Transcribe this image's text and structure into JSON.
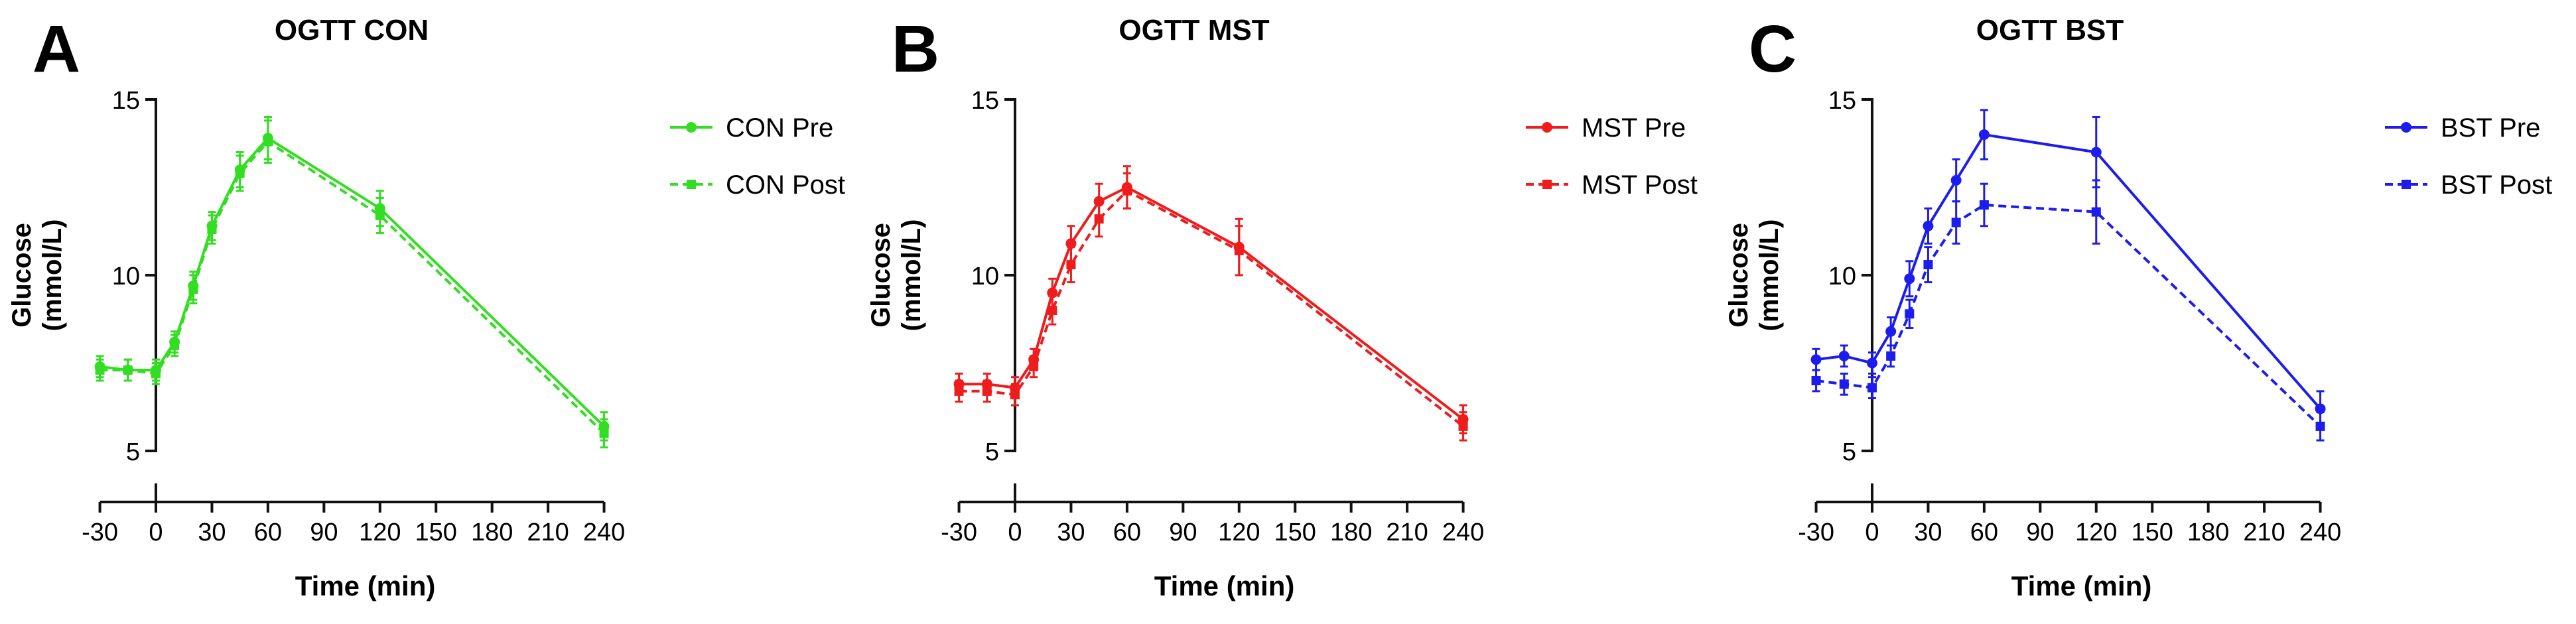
{
  "chart_data": [
    {
      "panel_label": "A",
      "type": "line",
      "title": "OGTT CON",
      "xlabel": "Time (min)",
      "ylabel_line1": "Glucose",
      "ylabel_line2": "(mmol/L)",
      "xlim": [
        -30,
        240
      ],
      "ylim": [
        5,
        15
      ],
      "xticks": [
        -30,
        0,
        30,
        60,
        90,
        120,
        150,
        180,
        210,
        240
      ],
      "xtick_labels": [
        "-30",
        "0",
        "30",
        "60",
        "90",
        "120",
        "150",
        "180",
        "210",
        "240"
      ],
      "yticks": [
        5,
        10,
        15
      ],
      "ytick_labels": [
        "5",
        "10",
        "15"
      ],
      "color": "#33dd22",
      "legend_position": "right",
      "series": [
        {
          "name": "CON Pre",
          "style": "solid",
          "marker": "circle",
          "x": [
            -30,
            -15,
            0,
            10,
            20,
            30,
            45,
            60,
            120,
            240
          ],
          "y": [
            7.4,
            7.3,
            7.3,
            8.1,
            9.7,
            11.4,
            13.0,
            13.9,
            11.9,
            5.7
          ],
          "err": [
            0.3,
            0.3,
            0.3,
            0.3,
            0.4,
            0.4,
            0.5,
            0.6,
            0.5,
            0.4
          ]
        },
        {
          "name": "CON Post",
          "style": "dashed",
          "marker": "square",
          "x": [
            -30,
            -15,
            0,
            10,
            20,
            30,
            45,
            60,
            120,
            240
          ],
          "y": [
            7.3,
            7.3,
            7.2,
            8.0,
            9.6,
            11.3,
            12.9,
            13.8,
            11.7,
            5.5
          ],
          "err": [
            0.3,
            0.3,
            0.3,
            0.3,
            0.4,
            0.4,
            0.5,
            0.6,
            0.5,
            0.4
          ]
        }
      ]
    },
    {
      "panel_label": "B",
      "type": "line",
      "title": "OGTT MST",
      "xlabel": "Time (min)",
      "ylabel_line1": "Glucose",
      "ylabel_line2": "(mmol/L)",
      "xlim": [
        -30,
        240
      ],
      "ylim": [
        5,
        15
      ],
      "xticks": [
        -30,
        0,
        30,
        60,
        90,
        120,
        150,
        180,
        210,
        240
      ],
      "xtick_labels": [
        "-30",
        "0",
        "30",
        "60",
        "90",
        "120",
        "150",
        "180",
        "210",
        "240"
      ],
      "yticks": [
        5,
        10,
        15
      ],
      "ytick_labels": [
        "5",
        "10",
        "15"
      ],
      "color": "#ee1c1c",
      "legend_position": "right",
      "series": [
        {
          "name": "MST Pre",
          "style": "solid",
          "marker": "circle",
          "x": [
            -30,
            -15,
            0,
            10,
            20,
            30,
            45,
            60,
            120,
            240
          ],
          "y": [
            6.9,
            6.9,
            6.8,
            7.6,
            9.5,
            10.9,
            12.1,
            12.5,
            10.8,
            5.9
          ],
          "err": [
            0.3,
            0.3,
            0.3,
            0.3,
            0.4,
            0.5,
            0.5,
            0.6,
            0.8,
            0.4
          ]
        },
        {
          "name": "MST Post",
          "style": "dashed",
          "marker": "square",
          "x": [
            -30,
            -15,
            0,
            10,
            20,
            30,
            45,
            60,
            120,
            240
          ],
          "y": [
            6.7,
            6.7,
            6.6,
            7.4,
            9.0,
            10.3,
            11.6,
            12.4,
            10.7,
            5.7
          ],
          "err": [
            0.3,
            0.3,
            0.3,
            0.3,
            0.4,
            0.5,
            0.5,
            0.5,
            0.7,
            0.4
          ]
        }
      ]
    },
    {
      "panel_label": "C",
      "type": "line",
      "title": "OGTT BST",
      "xlabel": "Time (min)",
      "ylabel_line1": "Glucose",
      "ylabel_line2": "(mmol/L)",
      "xlim": [
        -30,
        240
      ],
      "ylim": [
        5,
        15
      ],
      "xticks": [
        -30,
        0,
        30,
        60,
        90,
        120,
        150,
        180,
        210,
        240
      ],
      "xtick_labels": [
        "-30",
        "0",
        "30",
        "60",
        "90",
        "120",
        "150",
        "180",
        "210",
        "240"
      ],
      "yticks": [
        5,
        10,
        15
      ],
      "ytick_labels": [
        "5",
        "10",
        "15"
      ],
      "color": "#1c1cee",
      "legend_position": "right",
      "series": [
        {
          "name": "BST Pre",
          "style": "solid",
          "marker": "circle",
          "x": [
            -30,
            -15,
            0,
            10,
            20,
            30,
            45,
            60,
            120,
            240
          ],
          "y": [
            7.6,
            7.7,
            7.5,
            8.4,
            9.9,
            11.4,
            12.7,
            14.0,
            13.5,
            6.2
          ],
          "err": [
            0.3,
            0.3,
            0.3,
            0.4,
            0.5,
            0.5,
            0.6,
            0.7,
            1.0,
            0.5
          ]
        },
        {
          "name": "BST Post",
          "style": "dashed",
          "marker": "square",
          "x": [
            -30,
            -15,
            0,
            10,
            20,
            30,
            45,
            60,
            120,
            240
          ],
          "y": [
            7.0,
            6.9,
            6.8,
            7.7,
            8.9,
            10.3,
            11.5,
            12.0,
            11.8,
            5.7
          ],
          "err": [
            0.3,
            0.3,
            0.3,
            0.3,
            0.4,
            0.5,
            0.6,
            0.6,
            0.9,
            0.4
          ]
        }
      ]
    }
  ]
}
